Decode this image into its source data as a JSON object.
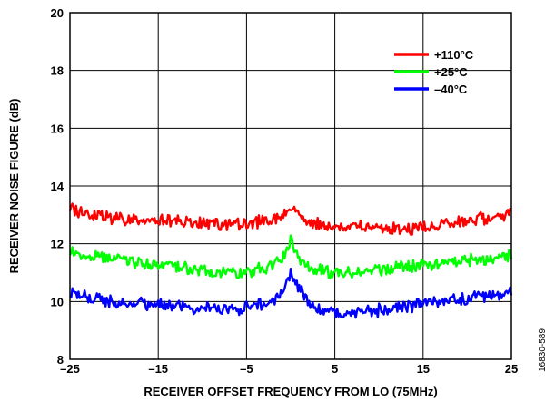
{
  "chart_data": {
    "type": "line",
    "xlabel": "RECEIVER OFFSET FREQUENCY FROM LO (75MHz)",
    "ylabel": "RECEIVER NOISE FIGURE (dB)",
    "xlim": [
      -25,
      25
    ],
    "ylim": [
      8,
      20
    ],
    "xticks": [
      -25,
      -15,
      -5,
      5,
      15,
      25
    ],
    "xtick_labels": [
      "–25",
      "–15",
      "–5",
      "5",
      "15",
      "25"
    ],
    "yticks": [
      8,
      10,
      12,
      14,
      16,
      18,
      20
    ],
    "ytick_labels": [
      "8",
      "10",
      "12",
      "14",
      "16",
      "18",
      "20"
    ],
    "grid": true,
    "legend_position": "top-right",
    "figure_id": "16830-589",
    "x": [
      -25,
      -22.5,
      -20,
      -17.5,
      -15,
      -12.5,
      -10,
      -7.5,
      -5,
      -2.5,
      -1,
      0,
      1,
      2.5,
      5,
      7.5,
      10,
      12.5,
      15,
      17.5,
      20,
      22.5,
      25
    ],
    "series": [
      {
        "name": "+110°C",
        "color": "#ff0000",
        "values": [
          13.2,
          13.0,
          12.9,
          12.8,
          12.8,
          12.8,
          12.7,
          12.7,
          12.7,
          12.8,
          12.9,
          13.3,
          12.9,
          12.7,
          12.6,
          12.6,
          12.5,
          12.5,
          12.6,
          12.7,
          12.8,
          12.9,
          13.1
        ]
      },
      {
        "name": "+25°C",
        "color": "#00ff00",
        "values": [
          11.7,
          11.6,
          11.5,
          11.4,
          11.3,
          11.2,
          11.1,
          11.0,
          11.0,
          11.2,
          11.5,
          12.1,
          11.4,
          11.1,
          11.0,
          11.0,
          11.1,
          11.2,
          11.3,
          11.3,
          11.4,
          11.5,
          11.6
        ]
      },
      {
        "name": "–40°C",
        "color": "#0000ff",
        "values": [
          10.3,
          10.1,
          10.0,
          9.9,
          9.9,
          9.8,
          9.8,
          9.7,
          9.8,
          9.9,
          10.3,
          11.0,
          10.4,
          9.8,
          9.6,
          9.6,
          9.7,
          9.8,
          9.9,
          10.0,
          10.1,
          10.2,
          10.3
        ]
      }
    ]
  }
}
